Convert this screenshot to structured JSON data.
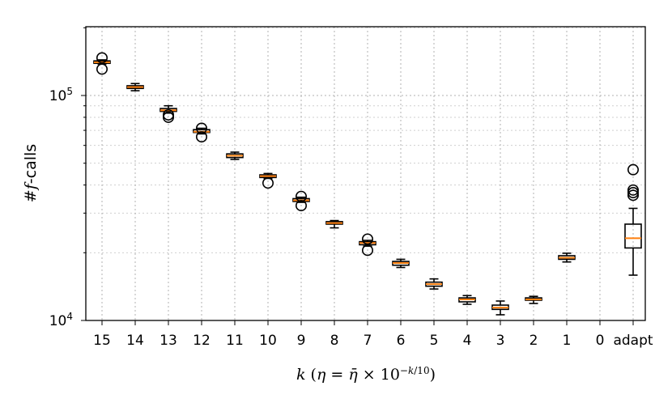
{
  "chart_data": {
    "type": "boxplot",
    "xlabel": "k (η = η̄ × 10^(−k/10))",
    "ylabel": "#f-calls",
    "yscale": "log",
    "ylim": [
      10000,
      200000
    ],
    "ytick_labels": [
      "10^4",
      "10^5"
    ],
    "grid": true,
    "categories": [
      "15",
      "14",
      "13",
      "12",
      "11",
      "10",
      "9",
      "8",
      "7",
      "6",
      "5",
      "4",
      "3",
      "2",
      "1",
      "0",
      "adapt"
    ],
    "boxes": [
      {
        "label": "15",
        "whislo": 138000,
        "q1": 139000,
        "med": 140500,
        "q3": 142500,
        "whishi": 144000,
        "fliers": [
          131000,
          147000
        ]
      },
      {
        "label": "14",
        "whislo": 105000,
        "q1": 107500,
        "med": 109000,
        "q3": 110500,
        "whishi": 113000,
        "fliers": []
      },
      {
        "label": "13",
        "whislo": 83500,
        "q1": 85000,
        "med": 86000,
        "q3": 87500,
        "whishi": 90000,
        "fliers": [
          80000,
          82000
        ]
      },
      {
        "label": "12",
        "whislo": 67500,
        "q1": 68500,
        "med": 69000,
        "q3": 70500,
        "whishi": 71500,
        "fliers": [
          65500,
          71500
        ]
      },
      {
        "label": "11",
        "whislo": 52000,
        "q1": 53000,
        "med": 54000,
        "q3": 55000,
        "whishi": 56000,
        "fliers": []
      },
      {
        "label": "10",
        "whislo": 42800,
        "q1": 43200,
        "med": 43800,
        "q3": 44400,
        "whishi": 45000,
        "fliers": [
          40800
        ]
      },
      {
        "label": "9",
        "whislo": 33500,
        "q1": 33800,
        "med": 34200,
        "q3": 34800,
        "whishi": 35300,
        "fliers": [
          32400,
          35600
        ]
      },
      {
        "label": "8",
        "whislo": 25800,
        "q1": 26800,
        "med": 27100,
        "q3": 27500,
        "whishi": 27800,
        "fliers": []
      },
      {
        "label": "7",
        "whislo": 21400,
        "q1": 21700,
        "med": 22100,
        "q3": 22400,
        "whishi": 22700,
        "fliers": [
          20500,
          23000
        ]
      },
      {
        "label": "6",
        "whislo": 17200,
        "q1": 17600,
        "med": 18000,
        "q3": 18300,
        "whishi": 18700,
        "fliers": []
      },
      {
        "label": "5",
        "whislo": 13800,
        "q1": 14200,
        "med": 14500,
        "q3": 14800,
        "whishi": 15300,
        "fliers": []
      },
      {
        "label": "4",
        "whislo": 11800,
        "q1": 12100,
        "med": 12400,
        "q3": 12600,
        "whishi": 12900,
        "fliers": []
      },
      {
        "label": "3",
        "whislo": 10600,
        "q1": 11200,
        "med": 11400,
        "q3": 11700,
        "whishi": 12200,
        "fliers": []
      },
      {
        "label": "2",
        "whislo": 11900,
        "q1": 12300,
        "med": 12400,
        "q3": 12600,
        "whishi": 12800,
        "fliers": []
      },
      {
        "label": "1",
        "whislo": 18200,
        "q1": 18700,
        "med": 19000,
        "q3": 19400,
        "whishi": 19900,
        "fliers": []
      },
      {
        "label": "0",
        "whislo": null,
        "q1": null,
        "med": null,
        "q3": null,
        "whishi": null,
        "fliers": []
      },
      {
        "label": "adapt",
        "whislo": 15900,
        "q1": 21000,
        "med": 23200,
        "q3": 26800,
        "whishi": 31500,
        "fliers": [
          36000,
          37000,
          38000,
          46800
        ]
      }
    ],
    "colors": {
      "box": "#000000",
      "median": "#ff7f0e",
      "grid": "#b0b0b0"
    }
  }
}
